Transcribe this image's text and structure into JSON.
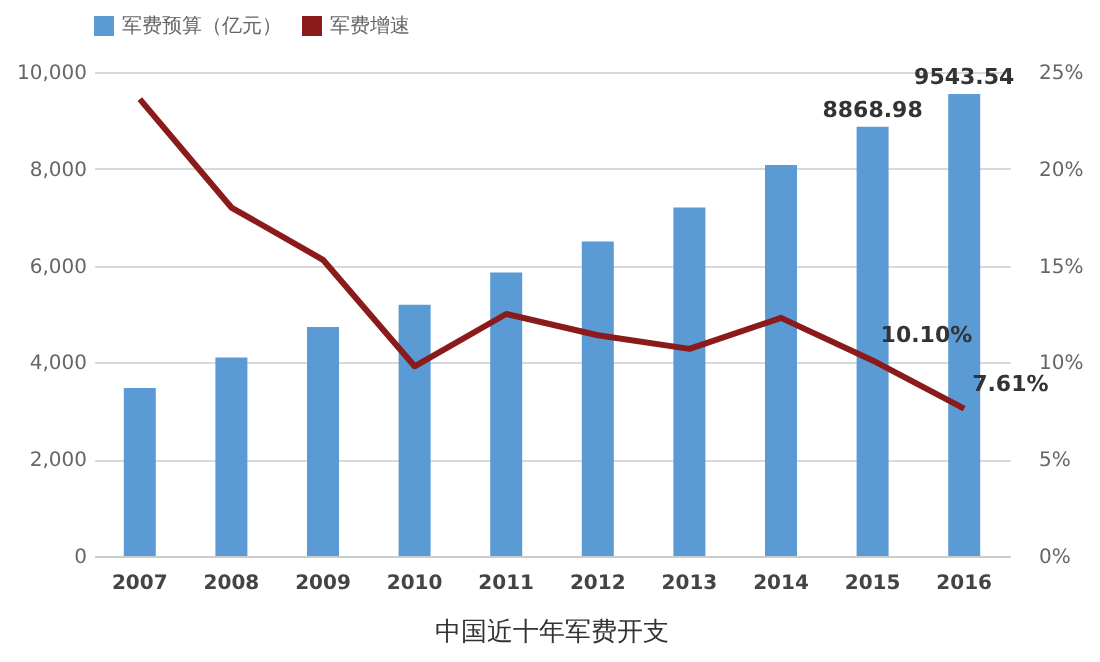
{
  "chart_data": {
    "type": "bar",
    "title": "中国近十年军费开支",
    "categories": [
      "2007",
      "2008",
      "2009",
      "2010",
      "2011",
      "2012",
      "2013",
      "2014",
      "2015",
      "2016"
    ],
    "series": [
      {
        "name": "军费预算（亿元）",
        "color": "#5b9bd5",
        "values": [
          3470,
          4100,
          4730,
          5190,
          5860,
          6500,
          7200,
          8080,
          8868.98,
          9543.54
        ],
        "value_labels": [
          null,
          null,
          null,
          null,
          null,
          null,
          null,
          null,
          "8868.98",
          "9543.54"
        ]
      },
      {
        "name": "军费增速",
        "type": "line",
        "axis": "y2",
        "color": "#8b1a1a",
        "values": [
          23.6,
          18,
          15.3,
          9.8,
          12.5,
          11.4,
          10.7,
          12.3,
          10.1,
          7.61
        ],
        "value_labels": [
          null,
          null,
          null,
          null,
          null,
          null,
          null,
          null,
          "10.10%",
          "7.61%"
        ]
      }
    ],
    "ylim": [
      0,
      10000
    ],
    "yticks": [
      {
        "value": 0,
        "label": "0"
      },
      {
        "value": 2000,
        "label": "2,000"
      },
      {
        "value": 4000,
        "label": "4,000"
      },
      {
        "value": 6000,
        "label": "6,000"
      },
      {
        "value": 8000,
        "label": "8,000"
      },
      {
        "value": 10000,
        "label": "10,000"
      }
    ],
    "y2lim": [
      0,
      25
    ],
    "y2ticks": [
      {
        "value": 0,
        "label": "0%"
      },
      {
        "value": 5,
        "label": "5%"
      },
      {
        "value": 10,
        "label": "10%"
      },
      {
        "value": 15,
        "label": "15%"
      },
      {
        "value": 20,
        "label": "20%"
      },
      {
        "value": 25,
        "label": "25%"
      }
    ],
    "grid": "y",
    "legend": "top",
    "marker": "none",
    "line_style": "solid"
  }
}
